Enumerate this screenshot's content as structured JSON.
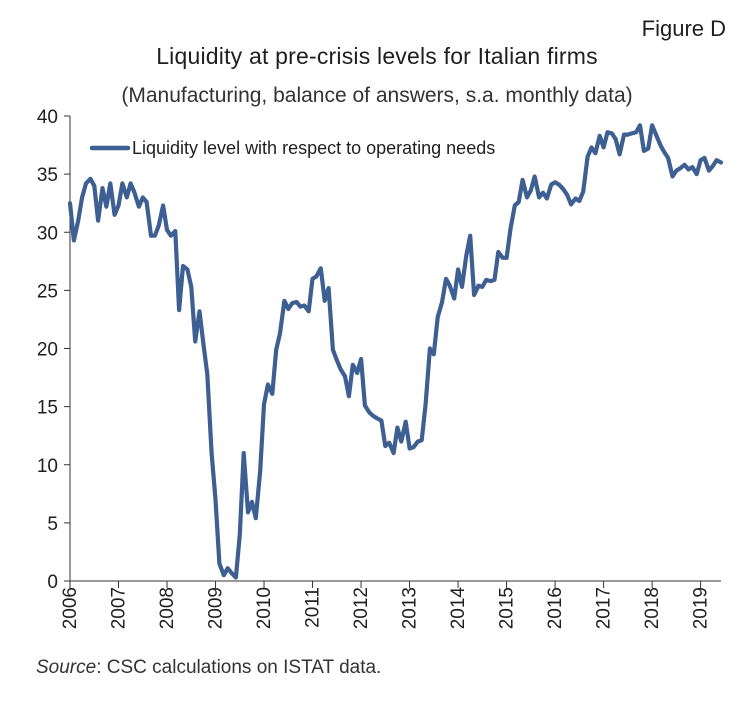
{
  "figure_label": "Figure D",
  "source": {
    "label": "Source",
    "text": ": CSC calculations on ISTAT data."
  },
  "colors": {
    "series": "#3d5f92",
    "axis": "#333333",
    "text": "#1f1f1f"
  },
  "chart_data": {
    "type": "line",
    "title": "Liquidity at pre-crisis levels for Italian firms",
    "subtitle": "(Manufacturing, balance of answers, s.a. monthly data)",
    "xlabel": "",
    "ylabel": "",
    "ylim": [
      0,
      40
    ],
    "xlim": [
      2006.0,
      2019.42
    ],
    "yticks": [
      0,
      5,
      10,
      15,
      20,
      25,
      30,
      35,
      40
    ],
    "xticks": [
      "2006",
      "2007",
      "2008",
      "2009",
      "2010",
      "2011",
      "2012",
      "2013",
      "2014",
      "2015",
      "2016",
      "2017",
      "2018",
      "2019"
    ],
    "grid": false,
    "legend": "top-left",
    "series": [
      {
        "name": "Liquidity level with respect to operating needs",
        "x": [
          2006.0,
          2006.08,
          2006.17,
          2006.25,
          2006.33,
          2006.42,
          2006.5,
          2006.58,
          2006.67,
          2006.75,
          2006.83,
          2006.92,
          2007.0,
          2007.08,
          2007.17,
          2007.25,
          2007.33,
          2007.42,
          2007.5,
          2007.58,
          2007.67,
          2007.75,
          2007.83,
          2007.92,
          2008.0,
          2008.08,
          2008.17,
          2008.25,
          2008.33,
          2008.42,
          2008.5,
          2008.58,
          2008.67,
          2008.75,
          2008.83,
          2008.92,
          2009.0,
          2009.08,
          2009.17,
          2009.25,
          2009.33,
          2009.42,
          2009.5,
          2009.58,
          2009.67,
          2009.75,
          2009.83,
          2009.92,
          2010.0,
          2010.08,
          2010.17,
          2010.25,
          2010.33,
          2010.42,
          2010.5,
          2010.58,
          2010.67,
          2010.75,
          2010.83,
          2010.92,
          2011.0,
          2011.08,
          2011.17,
          2011.25,
          2011.33,
          2011.42,
          2011.5,
          2011.58,
          2011.67,
          2011.75,
          2011.83,
          2011.92,
          2012.0,
          2012.08,
          2012.17,
          2012.25,
          2012.33,
          2012.42,
          2012.5,
          2012.58,
          2012.67,
          2012.75,
          2012.83,
          2012.92,
          2013.0,
          2013.08,
          2013.17,
          2013.25,
          2013.33,
          2013.42,
          2013.5,
          2013.58,
          2013.67,
          2013.75,
          2013.83,
          2013.92,
          2014.0,
          2014.08,
          2014.17,
          2014.25,
          2014.33,
          2014.42,
          2014.5,
          2014.58,
          2014.67,
          2014.75,
          2014.83,
          2014.92,
          2015.0,
          2015.08,
          2015.17,
          2015.25,
          2015.33,
          2015.42,
          2015.5,
          2015.58,
          2015.67,
          2015.75,
          2015.83,
          2015.92,
          2016.0,
          2016.08,
          2016.17,
          2016.25,
          2016.33,
          2016.42,
          2016.5,
          2016.58,
          2016.67,
          2016.75,
          2016.83,
          2016.92,
          2017.0,
          2017.08,
          2017.17,
          2017.25,
          2017.33,
          2017.42,
          2017.5,
          2017.58,
          2017.67,
          2017.75,
          2017.83,
          2017.92,
          2018.0,
          2018.08,
          2018.17,
          2018.25,
          2018.33,
          2018.42,
          2018.5,
          2018.58,
          2018.67,
          2018.75,
          2018.83,
          2018.92,
          2019.0,
          2019.08,
          2019.17,
          2019.25,
          2019.33,
          2019.42
        ],
        "values": [
          32.5,
          29.3,
          31.0,
          33.0,
          34.2,
          34.6,
          34.0,
          31.0,
          33.8,
          32.2,
          34.2,
          31.5,
          32.3,
          34.2,
          33.0,
          34.2,
          33.4,
          32.2,
          33.0,
          32.6,
          29.7,
          29.7,
          30.6,
          32.3,
          30.2,
          29.7,
          30.1,
          23.3,
          27.1,
          26.8,
          25.3,
          20.6,
          23.2,
          20.4,
          17.8,
          11.0,
          7.0,
          1.5,
          0.5,
          1.1,
          0.7,
          0.3,
          4.0,
          11.0,
          5.9,
          6.8,
          5.4,
          9.5,
          15.2,
          16.9,
          16.1,
          19.9,
          21.3,
          24.1,
          23.4,
          23.9,
          24.0,
          23.6,
          23.7,
          23.2,
          26.0,
          26.2,
          26.9,
          24.1,
          25.2,
          19.9,
          19.0,
          18.2,
          17.6,
          15.9,
          18.6,
          17.9,
          19.1,
          15.1,
          14.5,
          14.2,
          14.0,
          13.8,
          11.6,
          11.9,
          11.0,
          13.2,
          12.0,
          13.7,
          11.4,
          11.5,
          12.0,
          12.1,
          15.2,
          20.0,
          19.5,
          22.7,
          24.0,
          26.0,
          25.4,
          24.3,
          26.8,
          25.3,
          28.0,
          29.7,
          24.6,
          25.4,
          25.3,
          25.9,
          25.8,
          25.9,
          28.3,
          27.8,
          27.8,
          30.3,
          32.3,
          32.6,
          34.5,
          33.0,
          33.6,
          34.8,
          33.0,
          33.4,
          32.9,
          34.1,
          34.3,
          34.1,
          33.7,
          33.2,
          32.4,
          32.9,
          32.7,
          33.5,
          36.5,
          37.3,
          36.8,
          38.3,
          37.3,
          38.6,
          38.5,
          38.0,
          36.7,
          38.4,
          38.4,
          38.5,
          38.6,
          39.2,
          37.0,
          37.2,
          39.2,
          38.4,
          37.5,
          36.9,
          36.4,
          34.8,
          35.3,
          35.5,
          35.8,
          35.4,
          35.6,
          35.0,
          36.2,
          36.4,
          35.3,
          35.7,
          36.2,
          36.0
        ]
      }
    ]
  }
}
